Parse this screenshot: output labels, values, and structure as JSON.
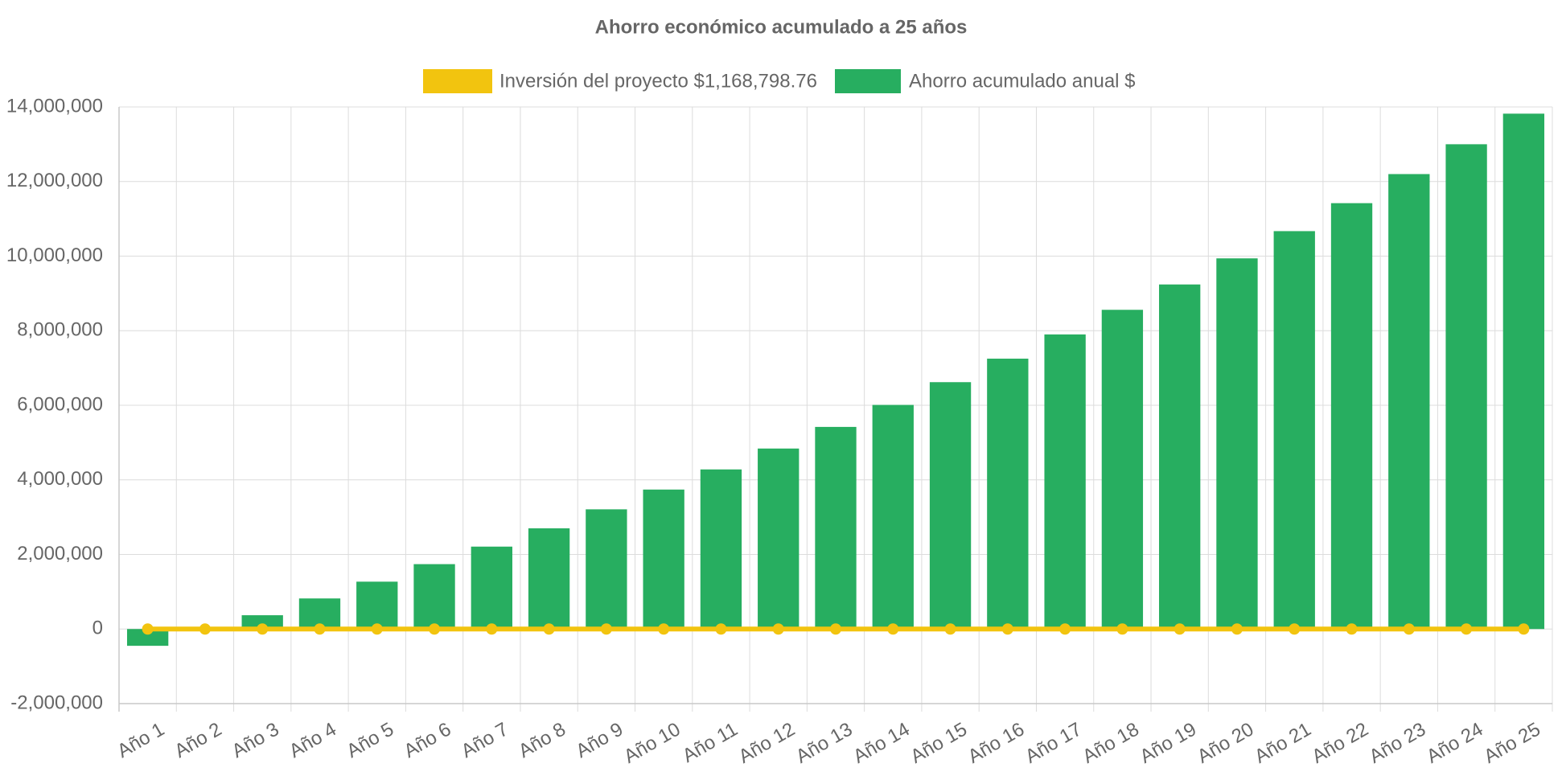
{
  "chart_data": {
    "type": "bar",
    "title": "Ahorro económico acumulado a 25 años",
    "xlabel": "",
    "ylabel": "",
    "categories": [
      "Año 1",
      "Año 2",
      "Año 3",
      "Año 4",
      "Año 5",
      "Año 6",
      "Año 7",
      "Año 8",
      "Año 9",
      "Año 10",
      "Año 11",
      "Año 12",
      "Año 13",
      "Año 14",
      "Año 15",
      "Año 16",
      "Año 17",
      "Año 18",
      "Año 19",
      "Año 20",
      "Año 21",
      "Año 22",
      "Año 23",
      "Año 24",
      "Año 25"
    ],
    "ylim": [
      -2000000,
      14000000
    ],
    "y_ticks": [
      -2000000,
      0,
      2000000,
      4000000,
      6000000,
      8000000,
      10000000,
      12000000,
      14000000
    ],
    "y_tick_labels": [
      "-2,000,000",
      "0",
      "2,000,000",
      "4,000,000",
      "6,000,000",
      "8,000,000",
      "10,000,000",
      "12,000,000",
      "14,000,000"
    ],
    "grid": true,
    "legend_position": "top-center",
    "series": [
      {
        "name": "Inversión del proyecto $1,168,798.76",
        "type": "line",
        "color": "#F2C40F",
        "values": [
          0,
          0,
          0,
          0,
          0,
          0,
          0,
          0,
          0,
          0,
          0,
          0,
          0,
          0,
          0,
          0,
          0,
          0,
          0,
          0,
          0,
          0,
          0,
          0,
          0
        ]
      },
      {
        "name": "Ahorro acumulado anual $",
        "type": "bar",
        "color": "#27AE60",
        "values": [
          -450000,
          0,
          370000,
          820000,
          1270000,
          1740000,
          2210000,
          2700000,
          3210000,
          3740000,
          4280000,
          4840000,
          5420000,
          6010000,
          6620000,
          7250000,
          7900000,
          8560000,
          9240000,
          9940000,
          10670000,
          11420000,
          12200000,
          13000000,
          13820000
        ]
      }
    ]
  }
}
